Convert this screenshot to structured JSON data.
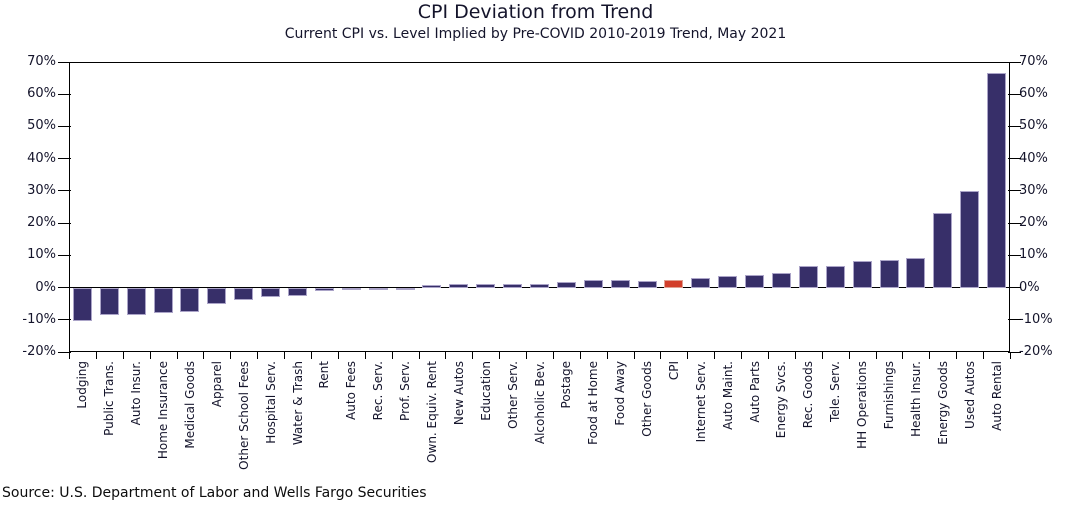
{
  "header": {
    "title": "CPI Deviation from Trend",
    "subtitle": "Current CPI vs. Level Implied by Pre-COVID 2010-2019 Trend, May 2021"
  },
  "footer": {
    "source": "Source: U.S. Department of Labor and Wells Fargo Securities"
  },
  "colors": {
    "bar": "#372f69",
    "bar_edge": "#aba4c8",
    "highlight": "#d23f2b",
    "highlight_edge": "#e0a092",
    "axis": "#000000",
    "text": "#14142b"
  },
  "chart_data": {
    "type": "bar",
    "title": "CPI Deviation from Trend",
    "subtitle": "Current CPI vs. Level Implied by Pre-COVID 2010-2019 Trend, May 2021",
    "xlabel": "",
    "ylabel": "",
    "ylim": [
      -20,
      70
    ],
    "ytick_step": 10,
    "ytick_labels": [
      "70%",
      "60%",
      "50%",
      "40%",
      "30%",
      "20%",
      "10%",
      "0%",
      "-10%",
      "-20%"
    ],
    "grid": false,
    "legend": "none",
    "dual_axis": true,
    "highlight_category": "CPI",
    "categories": [
      "Lodging",
      "Public Trans.",
      "Auto Insur.",
      "Home Insurance",
      "Medical Goods",
      "Apparel",
      "Other School Fees",
      "Hospital Serv.",
      "Water & Trash",
      "Rent",
      "Auto Fees",
      "Rec. Serv.",
      "Prof. Serv.",
      "Own. Equiv. Rent",
      "New Autos",
      "Education",
      "Other Serv.",
      "Alcoholic Bev.",
      "Postage",
      "Food at Home",
      "Food Away",
      "Other Goods",
      "CPI",
      "Internet Serv.",
      "Auto Maint.",
      "Auto Parts",
      "Energy Svcs.",
      "Rec. Goods",
      "Tele. Serv.",
      "HH Operations",
      "Furnishings",
      "Health Insur.",
      "Energy Goods",
      "Used Autos",
      "Auto Rental"
    ],
    "values": [
      -10.5,
      -8.5,
      -8.4,
      -8.0,
      -7.5,
      -5.0,
      -4.0,
      -3.0,
      -2.5,
      -1.0,
      -0.5,
      -0.2,
      -0.1,
      0.7,
      1.0,
      1.2,
      1.2,
      1.1,
      1.8,
      2.2,
      2.5,
      2.1,
      2.4,
      3.0,
      3.5,
      3.8,
      4.4,
      6.6,
      6.7,
      8.3,
      8.6,
      9.2,
      23.0,
      30.0,
      66.5
    ]
  }
}
